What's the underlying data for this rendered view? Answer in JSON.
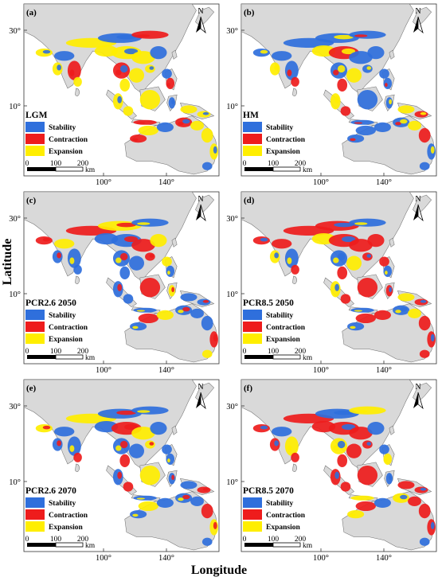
{
  "axis": {
    "y_title": "Latitude",
    "x_title": "Longitude"
  },
  "ticks": {
    "lat": [
      "30°",
      "10°"
    ],
    "lon": [
      "100°",
      "140°"
    ]
  },
  "legend": {
    "stability": "Stability",
    "contraction": "Contraction",
    "expansion": "Expansion"
  },
  "scalebar": {
    "labels": [
      "0",
      "100",
      "200"
    ],
    "unit": "km"
  },
  "north": "N",
  "colors": {
    "stability": "#2f6fdc",
    "contraction": "#ee1c1c",
    "expansion": "#ffee00",
    "land": "#d9d9d9",
    "coast": "#6f6f6f",
    "frame": "#333333"
  },
  "panels": [
    {
      "letter": "(a)",
      "title": "LGM",
      "dominant": [
        "expansion",
        "stability",
        "contraction"
      ]
    },
    {
      "letter": "(b)",
      "title": "HM",
      "dominant": [
        "stability",
        "expansion",
        "contraction"
      ]
    },
    {
      "letter": "(c)",
      "title": "PCR2.6 2050",
      "dominant": [
        "stability",
        "contraction",
        "expansion"
      ]
    },
    {
      "letter": "(d)",
      "title": "PCR8.5 2050",
      "dominant": [
        "contraction",
        "stability",
        "expansion"
      ]
    },
    {
      "letter": "(e)",
      "title": "PCR2.6 2070",
      "dominant": [
        "stability",
        "contraction",
        "expansion"
      ]
    },
    {
      "letter": "(f)",
      "title": "PCR8.5 2070",
      "dominant": [
        "contraction",
        "stability",
        "expansion"
      ]
    }
  ]
}
